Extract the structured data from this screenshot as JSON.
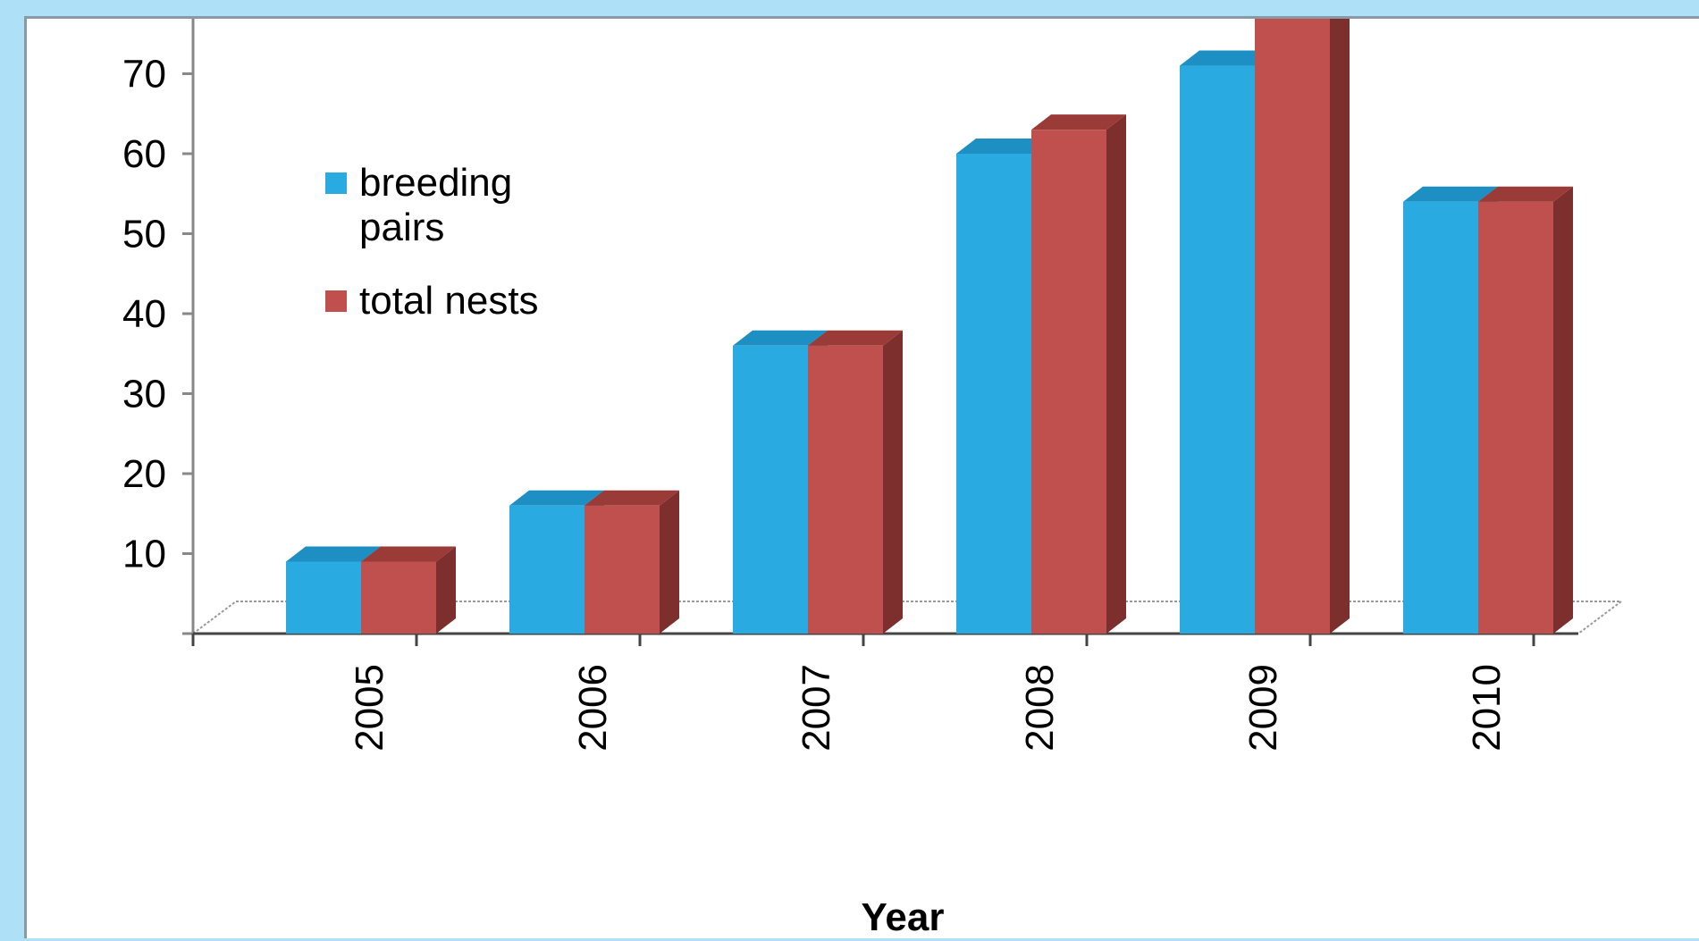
{
  "colors": {
    "background": "#aee0f7",
    "panel": "#ffffff",
    "series_front": [
      "#29abe2",
      "#c0504d"
    ],
    "series_top": [
      "#1e8fc2",
      "#9b3b38"
    ],
    "series_side": [
      "#1b7aa6",
      "#7d2f2d"
    ],
    "axis": "#888888"
  },
  "legend": {
    "items": [
      {
        "line1": "breeding",
        "line2": "pairs"
      },
      {
        "line1": "total nests",
        "line2": ""
      }
    ]
  },
  "chart_data": {
    "type": "bar",
    "title": "",
    "xlabel": "Year",
    "ylabel": "",
    "categories": [
      "2005",
      "2006",
      "2007",
      "2008",
      "2009",
      "2010"
    ],
    "series": [
      {
        "name": "breeding pairs",
        "values": [
          9,
          16,
          36,
          60,
          71,
          54
        ]
      },
      {
        "name": "total nests",
        "values": [
          9,
          16,
          36,
          63,
          82,
          54
        ]
      }
    ],
    "ylim": [
      0,
      80
    ],
    "yticks": [
      "10",
      "20",
      "30",
      "40",
      "50",
      "60",
      "70",
      "80"
    ],
    "grid": false,
    "legend_position": "top-left",
    "style": "3d-clustered-column"
  }
}
